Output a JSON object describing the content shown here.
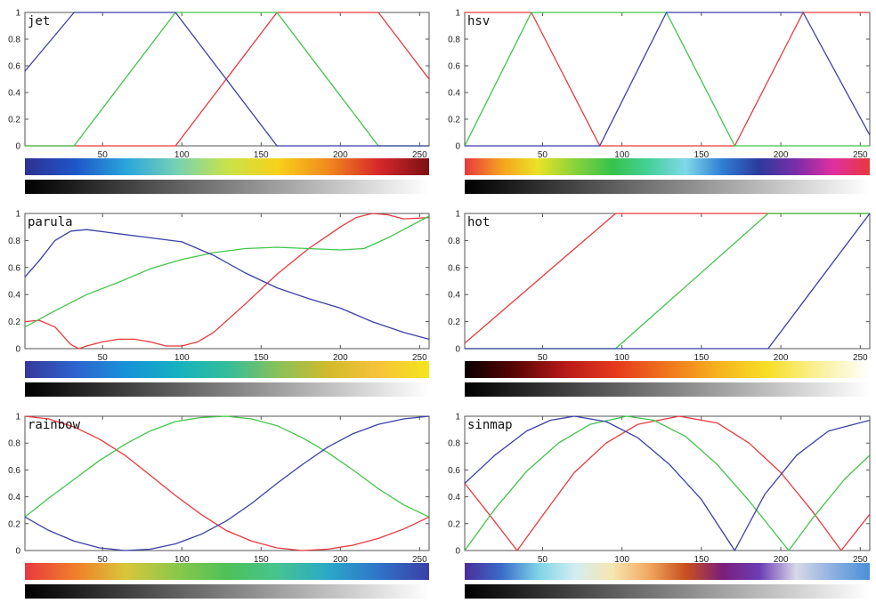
{
  "chart_data": [
    {
      "type": "line",
      "title": "jet",
      "xlim": [
        1,
        256
      ],
      "ylim": [
        0,
        1
      ],
      "xticks": [
        50,
        100,
        150,
        200,
        250
      ],
      "yticks": [
        0,
        0.2,
        0.4,
        0.6,
        0.8,
        1
      ],
      "grid": false,
      "series": [
        {
          "color": "#e8393f",
          "x": [
            1,
            96,
            160,
            224,
            256
          ],
          "y": [
            0,
            0,
            1,
            1,
            0.5
          ]
        },
        {
          "color": "#41c44a",
          "x": [
            1,
            32,
            96,
            160,
            224,
            256
          ],
          "y": [
            0,
            0,
            1,
            1,
            0,
            0
          ]
        },
        {
          "color": "#3b3fa8",
          "x": [
            1,
            32,
            96,
            160,
            256
          ],
          "y": [
            0.56,
            1,
            1,
            0,
            0
          ]
        }
      ],
      "colorbar": [
        "#2e3192",
        "#1e56c8",
        "#2aa4dc",
        "#75d1b4",
        "#c7e34a",
        "#f7d11a",
        "#f08a1c",
        "#d7282a",
        "#7b1114"
      ]
    },
    {
      "type": "line",
      "title": "hsv",
      "xlim": [
        1,
        256
      ],
      "ylim": [
        0,
        1
      ],
      "xticks": [
        50,
        100,
        150,
        200,
        250
      ],
      "yticks": [
        0,
        0.2,
        0.4,
        0.6,
        0.8,
        1
      ],
      "grid": false,
      "series": [
        {
          "color": "#e8393f",
          "x": [
            1,
            43,
            86,
            171,
            214,
            256
          ],
          "y": [
            1,
            1,
            0,
            0,
            1,
            1
          ]
        },
        {
          "color": "#41c44a",
          "x": [
            1,
            43,
            128,
            171,
            256
          ],
          "y": [
            0,
            1,
            1,
            0,
            0
          ]
        },
        {
          "color": "#3b3fa8",
          "x": [
            1,
            86,
            128,
            214,
            256
          ],
          "y": [
            0,
            0,
            1,
            1,
            0.08
          ]
        }
      ],
      "colorbar": [
        "#e8393f",
        "#f5a21e",
        "#e9e327",
        "#87d23a",
        "#36c24a",
        "#45d19a",
        "#7fd8e8",
        "#2f7fd3",
        "#2c3a9c",
        "#7a2ea8",
        "#e02fa0",
        "#e8393f"
      ]
    },
    {
      "type": "line",
      "title": "parula",
      "xlim": [
        1,
        256
      ],
      "ylim": [
        0,
        1
      ],
      "xticks": [
        50,
        100,
        150,
        200,
        250
      ],
      "yticks": [
        0,
        0.2,
        0.4,
        0.6,
        0.8,
        1
      ],
      "grid": false,
      "series": [
        {
          "color": "#e8393f",
          "x": [
            1,
            10,
            20,
            30,
            35,
            40,
            50,
            60,
            70,
            80,
            90,
            100,
            110,
            120,
            140,
            160,
            180,
            200,
            210,
            220,
            230,
            240,
            256
          ],
          "y": [
            0.2,
            0.21,
            0.16,
            0.03,
            0.0,
            0.02,
            0.05,
            0.07,
            0.07,
            0.05,
            0.02,
            0.02,
            0.05,
            0.12,
            0.33,
            0.55,
            0.74,
            0.9,
            0.97,
            1.0,
            0.99,
            0.96,
            0.97
          ]
        },
        {
          "color": "#41c44a",
          "x": [
            1,
            20,
            40,
            60,
            80,
            100,
            120,
            140,
            160,
            180,
            200,
            215,
            230,
            256
          ],
          "y": [
            0.16,
            0.28,
            0.4,
            0.49,
            0.59,
            0.66,
            0.71,
            0.74,
            0.75,
            0.74,
            0.73,
            0.74,
            0.82,
            0.98
          ]
        },
        {
          "color": "#3b3fa8",
          "x": [
            1,
            10,
            20,
            30,
            40,
            60,
            80,
            100,
            120,
            140,
            160,
            180,
            200,
            220,
            240,
            256
          ],
          "y": [
            0.53,
            0.65,
            0.8,
            0.87,
            0.88,
            0.85,
            0.82,
            0.79,
            0.69,
            0.56,
            0.45,
            0.37,
            0.3,
            0.2,
            0.12,
            0.07
          ]
        }
      ],
      "colorbar": [
        "#35399a",
        "#2e63d0",
        "#1792d8",
        "#14b1c1",
        "#33bd9a",
        "#88c15a",
        "#d1ba2c",
        "#f7c33a",
        "#f3e51a"
      ]
    },
    {
      "type": "line",
      "title": "hot",
      "xlim": [
        1,
        256
      ],
      "ylim": [
        0,
        1
      ],
      "xticks": [
        50,
        100,
        150,
        200,
        250
      ],
      "yticks": [
        0,
        0.2,
        0.4,
        0.6,
        0.8,
        1
      ],
      "grid": false,
      "series": [
        {
          "color": "#e8393f",
          "x": [
            1,
            96,
            256
          ],
          "y": [
            0.04,
            1,
            1
          ]
        },
        {
          "color": "#41c44a",
          "x": [
            1,
            96,
            192,
            256
          ],
          "y": [
            0,
            0,
            1,
            1
          ]
        },
        {
          "color": "#3b3fa8",
          "x": [
            1,
            192,
            256
          ],
          "y": [
            0,
            0,
            1
          ]
        }
      ],
      "colorbar": [
        "#0a0000",
        "#5a0505",
        "#b81a1a",
        "#e63a1c",
        "#f0751c",
        "#f6b21e",
        "#f8e027",
        "#faf09a",
        "#ffffff"
      ]
    },
    {
      "type": "line",
      "title": "rainbow",
      "xlim": [
        1,
        256
      ],
      "ylim": [
        0,
        1
      ],
      "xticks": [
        50,
        100,
        150,
        200,
        250
      ],
      "yticks": [
        0,
        0.2,
        0.4,
        0.6,
        0.8,
        1
      ],
      "grid": false,
      "series": [
        {
          "color": "#e8393f",
          "x": [
            1,
            16,
            32,
            48,
            64,
            80,
            96,
            112,
            128,
            144,
            160,
            176,
            192,
            208,
            224,
            240,
            256
          ],
          "y": [
            1,
            0.98,
            0.92,
            0.83,
            0.71,
            0.56,
            0.41,
            0.27,
            0.15,
            0.07,
            0.02,
            0.0,
            0.01,
            0.04,
            0.09,
            0.16,
            0.25
          ]
        },
        {
          "color": "#41c44a",
          "x": [
            1,
            16,
            32,
            48,
            64,
            80,
            96,
            112,
            128,
            144,
            160,
            176,
            192,
            208,
            224,
            240,
            256
          ],
          "y": [
            0.25,
            0.39,
            0.53,
            0.67,
            0.79,
            0.89,
            0.96,
            0.99,
            1.0,
            0.98,
            0.93,
            0.84,
            0.73,
            0.6,
            0.46,
            0.34,
            0.25
          ]
        },
        {
          "color": "#3b3fa8",
          "x": [
            1,
            16,
            32,
            48,
            64,
            80,
            96,
            112,
            128,
            144,
            160,
            176,
            192,
            208,
            224,
            240,
            256
          ],
          "y": [
            0.25,
            0.15,
            0.07,
            0.02,
            0.0,
            0.01,
            0.05,
            0.12,
            0.22,
            0.35,
            0.5,
            0.64,
            0.77,
            0.87,
            0.94,
            0.98,
            1.0
          ]
        }
      ],
      "colorbar": [
        "#e8393f",
        "#f07f2a",
        "#d8c63a",
        "#8bc84a",
        "#4ec158",
        "#46c48f",
        "#2aa8c8",
        "#2f74c8",
        "#3b3fa8"
      ]
    },
    {
      "type": "line",
      "title": "sinmap",
      "xlim": [
        1,
        256
      ],
      "ylim": [
        0,
        1
      ],
      "xticks": [
        50,
        100,
        150,
        200,
        250
      ],
      "yticks": [
        0,
        0.2,
        0.4,
        0.6,
        0.8,
        1
      ],
      "grid": false,
      "series": [
        {
          "color": "#e8393f",
          "x": [
            1,
            15,
            34,
            50,
            70,
            90,
            110,
            136,
            160,
            180,
            200,
            220,
            238,
            256
          ],
          "y": [
            0.5,
            0.29,
            0.0,
            0.26,
            0.58,
            0.8,
            0.94,
            1.0,
            0.95,
            0.8,
            0.58,
            0.29,
            0.0,
            0.27
          ]
        },
        {
          "color": "#41c44a",
          "x": [
            1,
            20,
            40,
            60,
            80,
            103,
            120,
            140,
            160,
            180,
            205,
            220,
            240,
            256
          ],
          "y": [
            0.0,
            0.31,
            0.59,
            0.8,
            0.94,
            1.0,
            0.97,
            0.85,
            0.64,
            0.37,
            0.0,
            0.24,
            0.53,
            0.71
          ]
        },
        {
          "color": "#3b3fa8",
          "x": [
            1,
            20,
            40,
            55,
            70,
            90,
            110,
            130,
            150,
            171,
            190,
            210,
            230,
            256
          ],
          "y": [
            0.5,
            0.71,
            0.89,
            0.97,
            1.0,
            0.96,
            0.84,
            0.64,
            0.38,
            0.0,
            0.42,
            0.71,
            0.89,
            0.97
          ]
        }
      ],
      "colorbar": [
        "#4a2e9a",
        "#3a6cc8",
        "#7fd3e8",
        "#d2eef3",
        "#f6e6b0",
        "#f0a860",
        "#c8501e",
        "#7a1f7a",
        "#6c3cb4",
        "#d8d8e8",
        "#8cb0e0",
        "#4a90d8"
      ]
    }
  ],
  "grayscale": {
    "from": "#000000",
    "to": "#ffffff"
  }
}
